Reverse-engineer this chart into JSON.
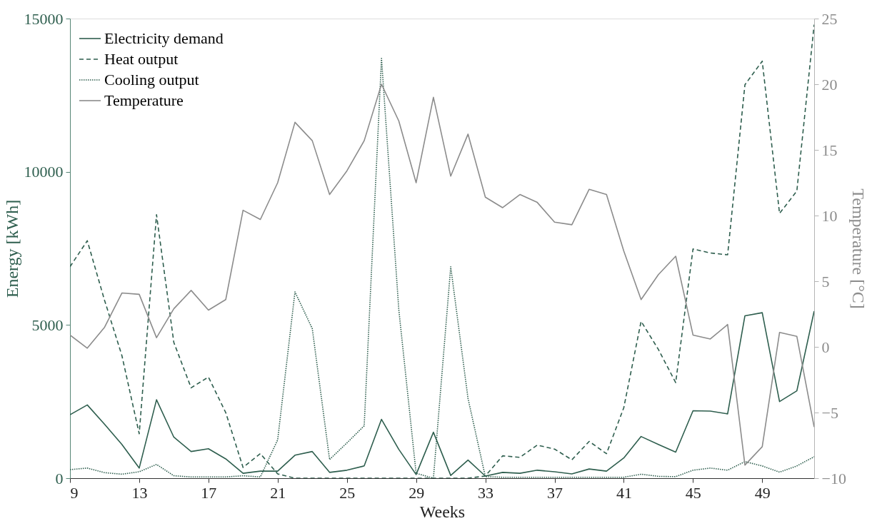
{
  "chart_data": {
    "type": "line",
    "xlabel": "Weeks",
    "ylabel": "Energy [kWh]",
    "y2label": "Temperature [°C]",
    "x": [
      9,
      10,
      11,
      12,
      13,
      14,
      15,
      16,
      17,
      18,
      19,
      20,
      21,
      22,
      23,
      24,
      25,
      26,
      27,
      28,
      29,
      30,
      31,
      32,
      33,
      34,
      35,
      36,
      37,
      38,
      39,
      40,
      41,
      42,
      43,
      44,
      45,
      46,
      47,
      48,
      49,
      50,
      51,
      52
    ],
    "xlim": [
      9,
      52
    ],
    "xticks": [
      9,
      13,
      17,
      21,
      25,
      29,
      33,
      37,
      41,
      45,
      49
    ],
    "ylim": [
      0,
      15000
    ],
    "yticks": [
      0,
      5000,
      10000,
      15000
    ],
    "y2lim": [
      -10,
      25
    ],
    "y2ticks": [
      -10,
      -5,
      0,
      5,
      10,
      15,
      20,
      25
    ],
    "grid": false,
    "legend": "top left",
    "marker": "none",
    "series": [
      {
        "name": "Electricity demand",
        "color": "#2e5e4e",
        "line_style": "solid",
        "values": [
          2070,
          2390,
          1760,
          1100,
          330,
          2560,
          1340,
          870,
          960,
          630,
          160,
          230,
          230,
          750,
          870,
          190,
          260,
          400,
          1920,
          940,
          120,
          1500,
          90,
          590,
          70,
          190,
          160,
          260,
          210,
          140,
          300,
          230,
          660,
          1360,
          1100,
          850,
          2200,
          2190,
          2100,
          5300,
          5400,
          2500,
          2850,
          5450
        ]
      },
      {
        "name": "Heat output",
        "color": "#2e5e4e",
        "line_style": "dashed",
        "values": [
          6900,
          7750,
          5800,
          4000,
          1450,
          8600,
          4430,
          2950,
          3300,
          2140,
          350,
          800,
          140,
          0,
          0,
          0,
          0,
          0,
          0,
          0,
          0,
          0,
          0,
          0,
          70,
          730,
          680,
          1080,
          950,
          600,
          1200,
          800,
          2300,
          5120,
          4200,
          3120,
          7480,
          7350,
          7290,
          12840,
          13610,
          8640,
          9370,
          14800
        ]
      },
      {
        "name": "Cooling output",
        "color": "#2e5e4e",
        "line_style": "dotted",
        "values": [
          280,
          330,
          180,
          130,
          210,
          450,
          80,
          40,
          40,
          40,
          80,
          40,
          1250,
          6080,
          4880,
          610,
          1150,
          1710,
          13700,
          5500,
          160,
          0,
          6900,
          2600,
          50,
          30,
          30,
          30,
          30,
          30,
          30,
          30,
          30,
          130,
          60,
          50,
          260,
          330,
          260,
          540,
          400,
          200,
          400,
          700
        ]
      },
      {
        "name": "Temperature",
        "color": "#8c8c8c",
        "line_style": "solid",
        "axis": "y2",
        "values": [
          0.9,
          -0.1,
          1.5,
          4.1,
          4.0,
          0.7,
          2.9,
          4.3,
          2.8,
          3.6,
          10.4,
          9.7,
          12.5,
          17.1,
          15.7,
          11.6,
          13.4,
          15.7,
          20.0,
          17.2,
          12.5,
          19.0,
          13.0,
          16.2,
          11.4,
          10.6,
          11.6,
          11.0,
          9.5,
          9.3,
          12.0,
          11.6,
          7.3,
          3.6,
          5.5,
          6.9,
          0.9,
          0.6,
          1.7,
          -9.0,
          -7.6,
          1.1,
          0.8,
          -6.1
        ]
      }
    ]
  }
}
